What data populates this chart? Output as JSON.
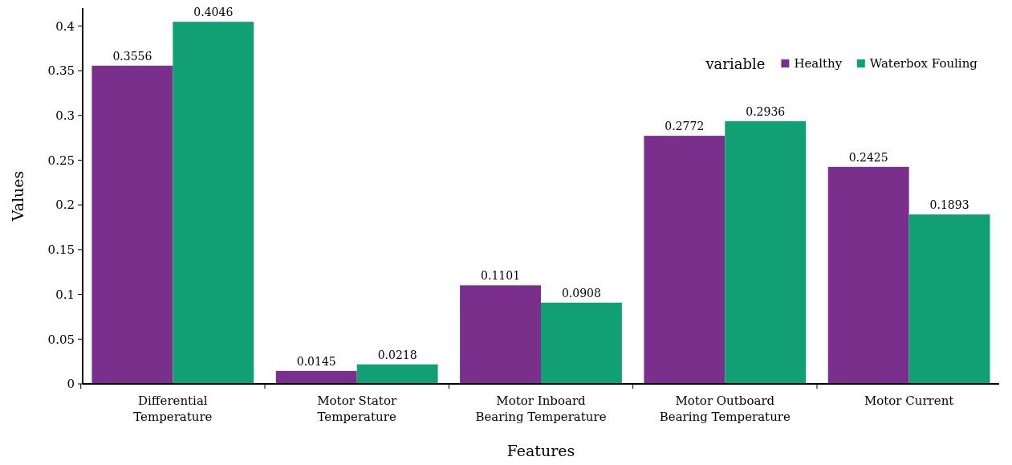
{
  "chart_data": {
    "type": "bar",
    "xlabel": "Features",
    "ylabel": "Values",
    "legend_title": "variable",
    "categories": [
      "Differential Temperature",
      "Motor Stator Temperature",
      "Motor Inboard Bearing Temperature",
      "Motor Outboard Bearing Temperature",
      "Motor Current"
    ],
    "series": [
      {
        "name": "Healthy",
        "color": "#7b2f8c",
        "values": [
          0.3556,
          0.0145,
          0.1101,
          0.2772,
          0.2425
        ]
      },
      {
        "name": "Waterbox Fouling",
        "color": "#11a073",
        "values": [
          0.4046,
          0.0218,
          0.0908,
          0.2936,
          0.1893
        ]
      }
    ],
    "ylim": [
      0,
      0.42
    ],
    "yticks": [
      0,
      0.05,
      0.1,
      0.15,
      0.2,
      0.25,
      0.3,
      0.35,
      0.4
    ],
    "data_labels": true,
    "legend": "top right",
    "grid": false
  }
}
